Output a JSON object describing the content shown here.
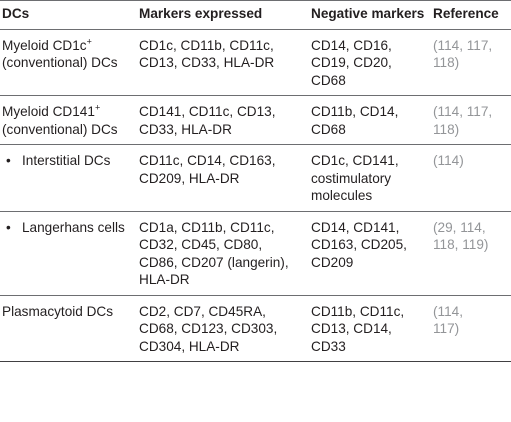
{
  "headers": {
    "col1": "DCs",
    "col2": "Markers expressed",
    "col3": "Negative markers",
    "col4": "Reference"
  },
  "rows": [
    {
      "dc_line1": "Myeloid CD1c",
      "dc_sup": "+",
      "dc_line2": "(conventional) DCs",
      "bullet": false,
      "markers": "CD1c, CD11b, CD11c,\nCD13, CD33, HLA-DR",
      "negative": "CD14, CD16,\nCD19, CD20,\nCD68",
      "reference": "(114, 117,\n118)"
    },
    {
      "dc_line1": "Myeloid CD141",
      "dc_sup": "+",
      "dc_line2": "(conventional) DCs",
      "bullet": false,
      "markers": "CD141, CD11c, CD13,\nCD33, HLA-DR",
      "negative": "CD11b, CD14,\nCD68",
      "reference": "(114, 117,\n118)"
    },
    {
      "dc_line1": "Interstitial DCs",
      "dc_sup": "",
      "dc_line2": "",
      "bullet": true,
      "bullet_symbol": "•",
      "markers": "CD11c, CD14, CD163,\nCD209, HLA-DR",
      "negative": "CD1c, CD141,\ncostimulatory\nmolecules",
      "reference": "(114)"
    },
    {
      "dc_line1": "Langerhans cells",
      "dc_sup": "",
      "dc_line2": "",
      "bullet": true,
      "bullet_symbol": "•",
      "markers": "CD1a, CD11b, CD11c,\nCD32, CD45, CD80,\nCD86, CD207 (langerin),\nHLA-DR",
      "negative": "CD14, CD141,\nCD163, CD205,\nCD209",
      "reference": "(29, 114,\n118, 119)"
    },
    {
      "dc_line1": "Plasmacytoid DCs",
      "dc_sup": "",
      "dc_line2": "",
      "bullet": false,
      "markers": "CD2, CD7, CD45RA,\nCD68, CD123, CD303,\nCD304, HLA-DR",
      "negative": "CD11b, CD11c,\nCD13, CD14,\nCD33",
      "reference": "(114,\n117)"
    }
  ]
}
